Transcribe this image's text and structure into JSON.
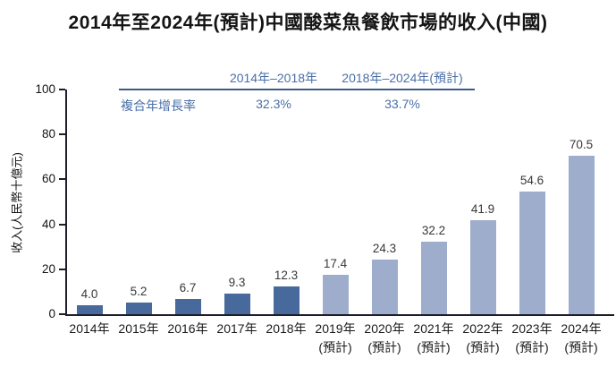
{
  "title": "2014年至2024年(預計)中國酸菜魚餐飲市場的收入(中國)",
  "cagr_table": {
    "row_label": "複合年增長率",
    "columns": [
      {
        "period": "2014年–2018年",
        "cagr": "32.3%"
      },
      {
        "period": "2018年–2024年(預計)",
        "cagr": "33.7%"
      }
    ]
  },
  "colors": {
    "actual_bar": "#48699c",
    "projected_bar": "#9dadcb",
    "accent_text": "#4a6fa8",
    "table_rule": "#3d5a85",
    "axis": "#1d1d2b",
    "value_label_text": "#383838"
  },
  "chart_data": {
    "type": "bar",
    "title": "2014年至2024年(預計)中國酸菜魚餐飲市場的收入(中國)",
    "xlabel": "",
    "ylabel": "收入(人民幣十億元)",
    "ylim": [
      0,
      100
    ],
    "y_ticks": [
      0,
      20,
      40,
      60,
      80,
      100
    ],
    "grid": false,
    "legend": false,
    "projected_start_index": 5,
    "categories": [
      "2014年",
      "2015年",
      "2016年",
      "2017年",
      "2018年",
      "2019年(預計)",
      "2020年(預計)",
      "2021年(預計)",
      "2022年(預計)",
      "2023年(預計)",
      "2024年(預計)"
    ],
    "values": [
      4.0,
      5.2,
      6.7,
      9.3,
      12.3,
      17.4,
      24.3,
      32.2,
      41.9,
      54.6,
      70.5
    ],
    "bars": [
      {
        "year": "2014年",
        "note": "",
        "value": 4.0,
        "projected": false
      },
      {
        "year": "2015年",
        "note": "",
        "value": 5.2,
        "projected": false
      },
      {
        "year": "2016年",
        "note": "",
        "value": 6.7,
        "projected": false
      },
      {
        "year": "2017年",
        "note": "",
        "value": 9.3,
        "projected": false
      },
      {
        "year": "2018年",
        "note": "",
        "value": 12.3,
        "projected": false
      },
      {
        "year": "2019年",
        "note": "(預計)",
        "value": 17.4,
        "projected": true
      },
      {
        "year": "2020年",
        "note": "(預計)",
        "value": 24.3,
        "projected": true
      },
      {
        "year": "2021年",
        "note": "(預計)",
        "value": 32.2,
        "projected": true
      },
      {
        "year": "2022年",
        "note": "(預計)",
        "value": 41.9,
        "projected": true
      },
      {
        "year": "2023年",
        "note": "(預計)",
        "value": 54.6,
        "projected": true
      },
      {
        "year": "2024年",
        "note": "(預計)",
        "value": 70.5,
        "projected": true
      }
    ]
  }
}
